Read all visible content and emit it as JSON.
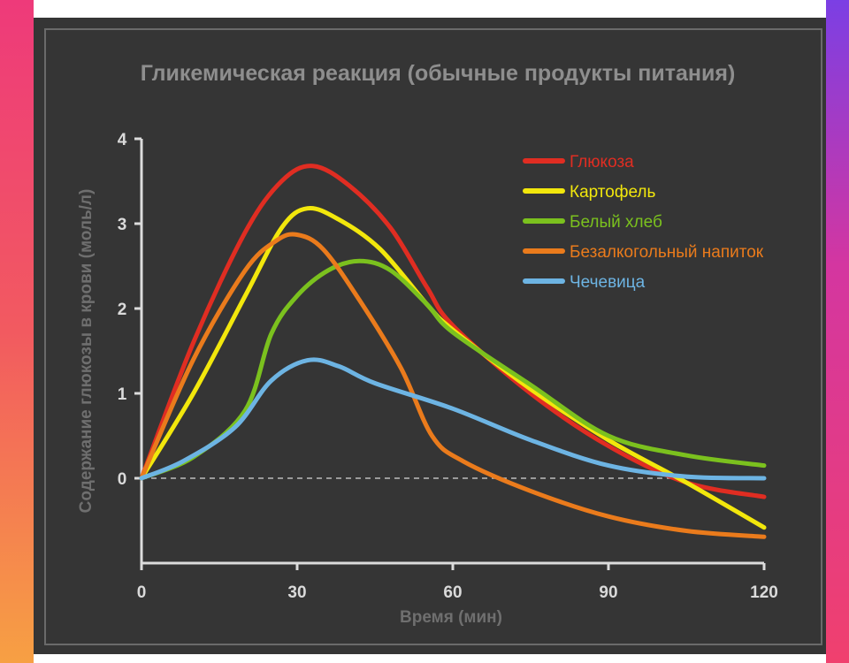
{
  "chart_data": {
    "type": "line",
    "title": "Гликемическая реакция (обычные продукты питания)",
    "xlabel": "Время (мин)",
    "ylabel": "Содержание глюкозы в крови (моль/л)",
    "xlim": [
      0,
      120
    ],
    "ylim": [
      -1,
      4
    ],
    "x_ticks": [
      0,
      30,
      60,
      90,
      120
    ],
    "y_ticks": [
      0,
      1,
      2,
      3,
      4
    ],
    "zero_line": "dashed",
    "legend_position": "top-right",
    "series": [
      {
        "name": "Глюкоза",
        "color": "#e02d22",
        "points": [
          [
            0,
            0
          ],
          [
            10,
            1.6
          ],
          [
            20,
            2.9
          ],
          [
            27,
            3.5
          ],
          [
            33,
            3.68
          ],
          [
            40,
            3.45
          ],
          [
            48,
            2.95
          ],
          [
            55,
            2.25
          ],
          [
            60,
            1.8
          ],
          [
            75,
            1.0
          ],
          [
            90,
            0.38
          ],
          [
            105,
            -0.05
          ],
          [
            120,
            -0.22
          ]
        ]
      },
      {
        "name": "Картофель",
        "color": "#f2e70c",
        "points": [
          [
            0,
            0
          ],
          [
            10,
            1.0
          ],
          [
            20,
            2.15
          ],
          [
            27,
            2.95
          ],
          [
            32,
            3.18
          ],
          [
            38,
            3.05
          ],
          [
            46,
            2.7
          ],
          [
            55,
            2.05
          ],
          [
            60,
            1.75
          ],
          [
            75,
            1.05
          ],
          [
            90,
            0.45
          ],
          [
            105,
            -0.05
          ],
          [
            120,
            -0.58
          ]
        ]
      },
      {
        "name": "Белый хлеб",
        "color": "#7bc11e",
        "points": [
          [
            0,
            0
          ],
          [
            10,
            0.25
          ],
          [
            20,
            0.8
          ],
          [
            25,
            1.7
          ],
          [
            30,
            2.15
          ],
          [
            36,
            2.45
          ],
          [
            42,
            2.56
          ],
          [
            48,
            2.45
          ],
          [
            55,
            2.05
          ],
          [
            60,
            1.72
          ],
          [
            75,
            1.1
          ],
          [
            90,
            0.5
          ],
          [
            105,
            0.27
          ],
          [
            120,
            0.15
          ]
        ]
      },
      {
        "name": "Безалкогольный напиток",
        "color": "#ea7b1c",
        "points": [
          [
            0,
            0
          ],
          [
            10,
            1.4
          ],
          [
            20,
            2.45
          ],
          [
            26,
            2.8
          ],
          [
            30,
            2.87
          ],
          [
            35,
            2.7
          ],
          [
            42,
            2.1
          ],
          [
            50,
            1.3
          ],
          [
            56,
            0.5
          ],
          [
            62,
            0.2
          ],
          [
            75,
            -0.15
          ],
          [
            90,
            -0.45
          ],
          [
            105,
            -0.62
          ],
          [
            120,
            -0.69
          ]
        ]
      },
      {
        "name": "Чечевица",
        "color": "#6db4e3",
        "points": [
          [
            0,
            0
          ],
          [
            8,
            0.2
          ],
          [
            18,
            0.6
          ],
          [
            25,
            1.15
          ],
          [
            32,
            1.39
          ],
          [
            38,
            1.32
          ],
          [
            45,
            1.12
          ],
          [
            60,
            0.82
          ],
          [
            75,
            0.45
          ],
          [
            90,
            0.15
          ],
          [
            105,
            0.02
          ],
          [
            120,
            0.0
          ]
        ]
      }
    ]
  }
}
